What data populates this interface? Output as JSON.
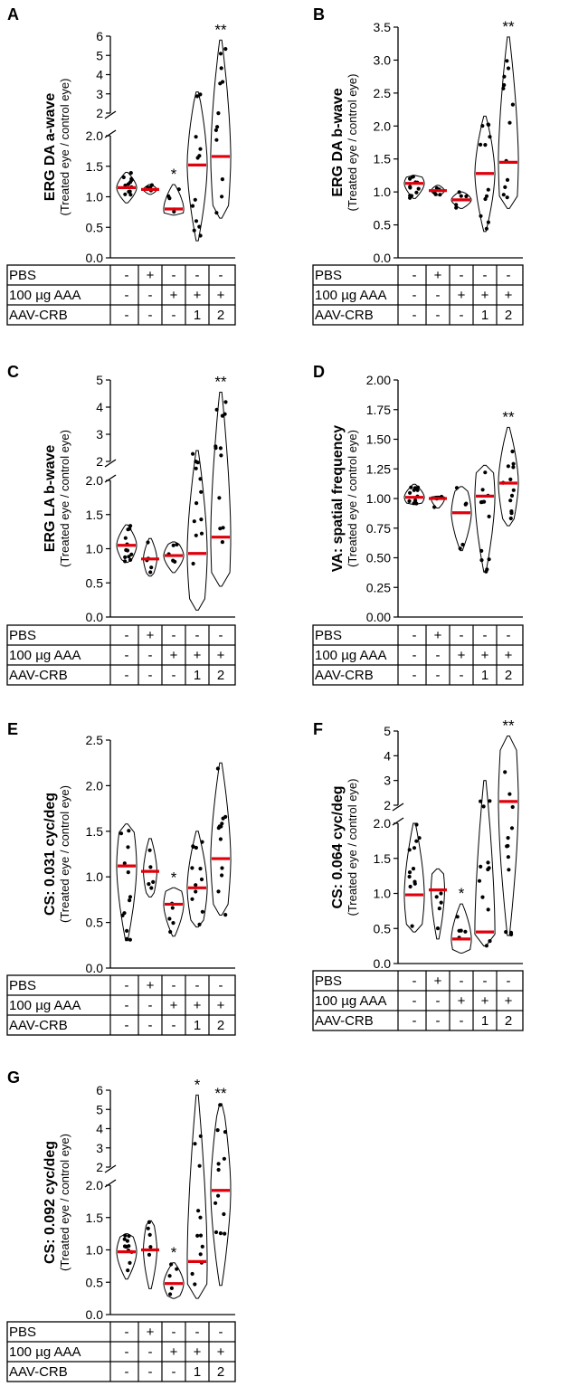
{
  "figure": {
    "row_labels": [
      "PBS",
      "100 µg AAA",
      "AAV-CRB"
    ],
    "conditions": [
      [
        "-",
        "-",
        "-"
      ],
      [
        "+",
        "-",
        "-"
      ],
      [
        "-",
        "+",
        "-"
      ],
      [
        "-",
        "+",
        "1"
      ],
      [
        "-",
        "+",
        "2"
      ]
    ],
    "ylabel_sub": "(Treated eye / control eye)"
  },
  "chart_data": [
    {
      "panel": "A",
      "type": "violin",
      "ylabel": "ERG DA a-wave",
      "ylim": [
        0,
        6
      ],
      "axis_break": [
        2.0,
        2.0
      ],
      "yticks": [
        "0.0",
        "0.5",
        "1.0",
        "1.5",
        "2.0",
        "2",
        "3",
        "4",
        "5",
        "6"
      ],
      "medians": [
        1.15,
        1.12,
        0.8,
        1.52,
        1.66
      ],
      "min": [
        0.9,
        1.04,
        0.7,
        0.28,
        0.65
      ],
      "max": [
        1.4,
        1.2,
        1.2,
        3.1,
        5.8
      ],
      "significance": [
        "",
        "",
        "*",
        "",
        "**"
      ]
    },
    {
      "panel": "B",
      "type": "violin",
      "ylabel": "ERG DA b-wave",
      "ylim": [
        0,
        3.5
      ],
      "yticks": [
        "0.0",
        "0.5",
        "1.0",
        "1.5",
        "2.0",
        "2.5",
        "3.0",
        "3.5"
      ],
      "medians": [
        1.13,
        1.02,
        0.88,
        1.28,
        1.45
      ],
      "min": [
        0.9,
        0.95,
        0.75,
        0.4,
        0.75
      ],
      "max": [
        1.25,
        1.1,
        1.0,
        2.15,
        3.35
      ],
      "significance": [
        "",
        "",
        "",
        "",
        "**"
      ]
    },
    {
      "panel": "C",
      "type": "violin",
      "ylabel": "ERG LA b-wave",
      "ylim": [
        0,
        5
      ],
      "axis_break": [
        2.0,
        2.0
      ],
      "yticks": [
        "0.0",
        "0.5",
        "1.0",
        "1.5",
        "2.0",
        "2",
        "3",
        "4",
        "5"
      ],
      "medians": [
        1.05,
        0.85,
        0.9,
        0.93,
        1.17
      ],
      "min": [
        0.8,
        0.6,
        0.65,
        0.1,
        0.45
      ],
      "max": [
        1.35,
        1.15,
        1.1,
        2.4,
        4.55
      ],
      "significance": [
        "",
        "",
        "",
        "",
        "**"
      ]
    },
    {
      "panel": "D",
      "type": "violin",
      "ylabel": "VA: spatial frequency",
      "ylim": [
        0,
        2.0
      ],
      "yticks": [
        "0.00",
        "0.25",
        "0.50",
        "0.75",
        "1.00",
        "1.25",
        "1.50",
        "1.75",
        "2.00"
      ],
      "medians": [
        1.01,
        1.0,
        0.88,
        1.02,
        1.13
      ],
      "min": [
        0.95,
        0.92,
        0.56,
        0.38,
        0.77
      ],
      "max": [
        1.12,
        1.02,
        1.1,
        1.28,
        1.6
      ],
      "significance": [
        "",
        "",
        "",
        "",
        "**"
      ]
    },
    {
      "panel": "E",
      "type": "violin",
      "ylabel": "CS: 0.031 cyc/deg",
      "ylim": [
        0,
        2.5
      ],
      "yticks": [
        "0.0",
        "0.5",
        "1.0",
        "1.5",
        "2.0",
        "2.5"
      ],
      "medians": [
        1.12,
        1.06,
        0.7,
        0.88,
        1.2
      ],
      "min": [
        0.3,
        0.78,
        0.35,
        0.45,
        0.58
      ],
      "max": [
        1.58,
        1.42,
        0.88,
        1.5,
        2.25
      ],
      "significance": [
        "",
        "",
        "*",
        "",
        ""
      ]
    },
    {
      "panel": "F",
      "type": "violin",
      "ylabel": "CS: 0.064 cyc/deg",
      "ylim": [
        0,
        5
      ],
      "axis_break": [
        2.0,
        2.0
      ],
      "yticks": [
        "0.0",
        "0.5",
        "1.0",
        "1.5",
        "2.0",
        "2",
        "3",
        "4",
        "5"
      ],
      "medians": [
        0.98,
        1.05,
        0.35,
        0.45,
        2.15
      ],
      "min": [
        0.45,
        0.35,
        0.15,
        0.25,
        0.4
      ],
      "max": [
        2.0,
        1.35,
        0.85,
        3.0,
        4.8
      ],
      "significance": [
        "",
        "",
        "*",
        "",
        "**"
      ]
    },
    {
      "panel": "G",
      "type": "violin",
      "ylabel": "CS: 0.092 cyc/deg",
      "ylim": [
        0,
        6
      ],
      "axis_break": [
        2.0,
        2.0
      ],
      "yticks": [
        "0.0",
        "0.5",
        "1.0",
        "1.5",
        "2.0",
        "2",
        "3",
        "4",
        "5",
        "6"
      ],
      "medians": [
        0.97,
        1.0,
        0.48,
        0.82,
        1.92
      ],
      "min": [
        0.55,
        0.4,
        0.25,
        0.25,
        0.45
      ],
      "max": [
        1.25,
        1.45,
        0.8,
        5.75,
        5.3
      ],
      "significance": [
        "",
        "",
        "*",
        "*",
        "**"
      ]
    }
  ]
}
